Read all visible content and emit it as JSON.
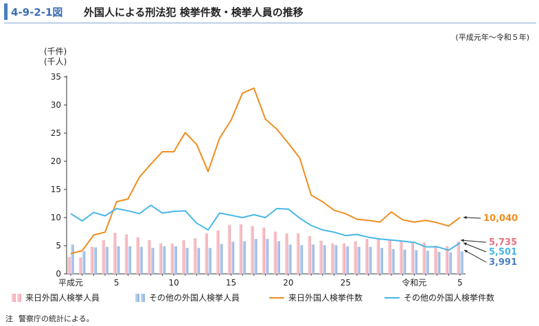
{
  "header": {
    "figure_number": "4-9-2-1図",
    "title": "外国人による刑法犯 検挙件数・検挙人員の推移"
  },
  "period_note": "(平成元年～令和５年)",
  "footnote": {
    "label": "注",
    "text": "警察庁の統計による。"
  },
  "colors": {
    "bar_visitor": "#f0a8b0",
    "bar_other": "#8fb0e0",
    "line_visitor": "#f08c1e",
    "line_other": "#46b6e6",
    "label_visitor_persons": "#e8707e",
    "label_other_cases": "#46b6e6",
    "label_other_persons": "#4a7fc1",
    "label_visitor_cases": "#f08c1e"
  },
  "chart_data": {
    "type": "bar",
    "x": [
      "平成元",
      "2",
      "3",
      "4",
      "5",
      "6",
      "7",
      "8",
      "9",
      "10",
      "11",
      "12",
      "13",
      "14",
      "15",
      "16",
      "17",
      "18",
      "19",
      "20",
      "21",
      "22",
      "23",
      "24",
      "25",
      "26",
      "27",
      "28",
      "29",
      "30",
      "令和元",
      "2",
      "3",
      "4",
      "5"
    ],
    "x_tick_labels": [
      {
        "index": 0,
        "label": "平成元"
      },
      {
        "index": 4,
        "label": "5"
      },
      {
        "index": 9,
        "label": "10"
      },
      {
        "index": 14,
        "label": "15"
      },
      {
        "index": 19,
        "label": "20"
      },
      {
        "index": 24,
        "label": "25"
      },
      {
        "index": 30,
        "label": "令和元"
      },
      {
        "index": 34,
        "label": "5"
      }
    ],
    "ylim": [
      0,
      35
    ],
    "yticks": [
      0,
      5,
      10,
      15,
      20,
      25,
      30,
      35
    ],
    "ylabel_lines": [
      "(千件)",
      "(千人)"
    ],
    "grid": false,
    "series": [
      {
        "name": "来日外国人検挙人員",
        "kind": "bar",
        "values": [
          3.0,
          2.9,
          4.8,
          6.0,
          7.3,
          7.0,
          6.5,
          6.0,
          5.4,
          5.4,
          6.0,
          6.3,
          7.2,
          7.7,
          8.7,
          8.8,
          8.5,
          8.2,
          7.5,
          7.2,
          7.2,
          6.7,
          5.9,
          5.4,
          5.4,
          5.8,
          6.2,
          6.1,
          6.1,
          5.8,
          5.7,
          5.6,
          5.0,
          4.9,
          5.735
        ]
      },
      {
        "name": "その他の外国人検挙人員",
        "kind": "bar",
        "values": [
          5.2,
          4.0,
          4.7,
          4.8,
          4.9,
          4.9,
          4.8,
          4.6,
          4.9,
          4.9,
          4.6,
          4.6,
          4.6,
          5.3,
          5.7,
          5.8,
          6.2,
          6.2,
          5.8,
          5.2,
          5.1,
          5.2,
          5.1,
          5.1,
          4.9,
          4.8,
          4.8,
          4.6,
          4.4,
          4.3,
          4.2,
          4.1,
          3.9,
          3.8,
          3.991
        ]
      },
      {
        "name": "来日外国人検挙件数",
        "kind": "line",
        "values": [
          3.6,
          4.1,
          6.9,
          7.4,
          12.8,
          13.3,
          17.2,
          19.5,
          21.7,
          21.7,
          25.1,
          23.0,
          18.2,
          24.1,
          27.3,
          32.1,
          33.0,
          27.5,
          25.7,
          23.2,
          20.6,
          14.0,
          12.8,
          11.3,
          10.7,
          9.7,
          9.5,
          9.2,
          11.0,
          9.6,
          9.2,
          9.5,
          9.1,
          8.5,
          10.04
        ]
      },
      {
        "name": "その他の外国人検挙件数",
        "kind": "line",
        "values": [
          10.7,
          9.4,
          10.9,
          10.3,
          11.6,
          11.2,
          10.7,
          12.2,
          10.8,
          11.1,
          11.2,
          9.0,
          7.8,
          10.8,
          10.4,
          10.0,
          10.5,
          10.0,
          11.6,
          11.5,
          9.9,
          8.6,
          7.8,
          7.4,
          6.8,
          7.0,
          6.5,
          6.2,
          6.0,
          5.8,
          5.6,
          4.8,
          4.8,
          4.2,
          5.501
        ]
      }
    ],
    "end_labels": [
      {
        "series": "来日外国人検挙件数",
        "text": "10,040"
      },
      {
        "series": "来日外国人検挙人員",
        "text": "5,735"
      },
      {
        "series": "その他の外国人検挙件数",
        "text": "5,501"
      },
      {
        "series": "その他の外国人検挙人員",
        "text": "3,991"
      }
    ],
    "legend_position": "bottom",
    "legend": [
      {
        "series": "来日外国人検挙人員",
        "swatch": "bar"
      },
      {
        "series": "その他の外国人検挙人員",
        "swatch": "bar"
      },
      {
        "series": "来日外国人検挙件数",
        "swatch": "line"
      },
      {
        "series": "その他の外国人検挙件数",
        "swatch": "line"
      }
    ]
  }
}
